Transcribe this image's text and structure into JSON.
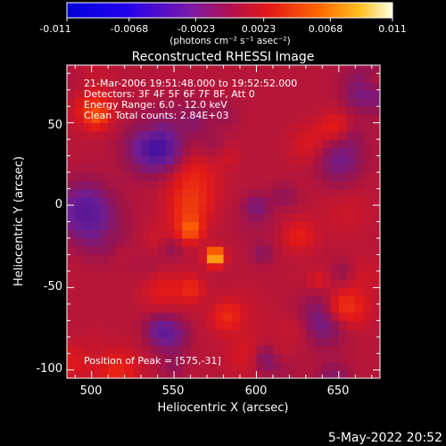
{
  "colorbar": {
    "tick_labels": [
      "-0.011",
      "-0.0068",
      "-0.0023",
      "0.0023",
      "0.0068",
      "0.011"
    ],
    "units_label": "(photons cm⁻² s⁻¹ asec⁻²)",
    "range": [
      -0.011,
      0.011
    ]
  },
  "chart_data": {
    "type": "heatmap",
    "title": "Reconstructed RHESSI Image",
    "xlabel": "Heliocentric X (arcsec)",
    "ylabel": "Heliocentric Y (arcsec)",
    "xlim": [
      485,
      675
    ],
    "ylim": [
      -105,
      85
    ],
    "x_ticks": [
      500,
      550,
      600,
      650
    ],
    "y_ticks": [
      -100,
      -50,
      0,
      50
    ],
    "info_lines": [
      "21-Mar-2006 19:51:48.000 to 19:52:52.000",
      "Detectors: 3F 4F 5F 6F 7F 8F, Att 0",
      "Energy Range: 6.0 - 12.0 keV",
      "Clean    Total counts: 2.84E+03"
    ],
    "peak_label": "Position of Peak = [575,-31]",
    "peak": [
      575,
      -31
    ],
    "colormap": "rainbow"
  },
  "footer_date": "5-May-2022 20:52"
}
